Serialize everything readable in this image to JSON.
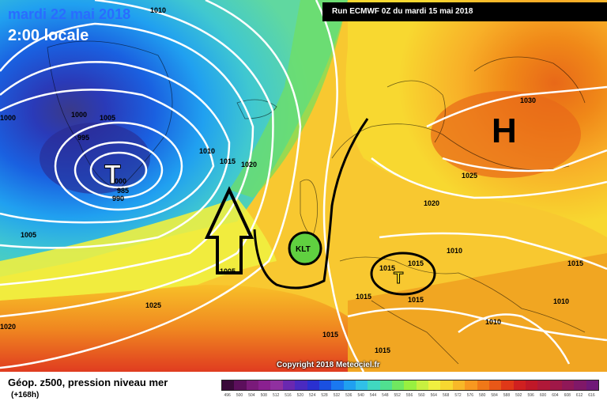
{
  "header": {
    "date": "mardi 22 mai 2018",
    "time": "2:00 locale",
    "run": "Run ECMWF 0Z du mardi 15 mai 2018"
  },
  "footer": {
    "title": "Géop. z500, pression niveau mer",
    "subtitle": "(+168h)",
    "copyright": "Copyright 2018 Meteociel.fr",
    "scale_values": [
      "496",
      "500",
      "504",
      "508",
      "512",
      "516",
      "520",
      "524",
      "528",
      "532",
      "536",
      "540",
      "544",
      "548",
      "552",
      "556",
      "560",
      "564",
      "568",
      "572",
      "576",
      "580",
      "584",
      "588",
      "592",
      "596",
      "600",
      "604",
      "608",
      "612",
      "616"
    ],
    "scale_colors": [
      "#3a0a3a",
      "#5c0f5c",
      "#7a1a7a",
      "#8a2090",
      "#9030a0",
      "#6a28b0",
      "#4a2ac0",
      "#2a30d0",
      "#1a50e0",
      "#1a78f0",
      "#20a0f0",
      "#30c0e8",
      "#40d8c0",
      "#50e090",
      "#70e860",
      "#98f040",
      "#c8f040",
      "#f0f040",
      "#f8d830",
      "#f8b828",
      "#f89820",
      "#f07818",
      "#e85818",
      "#e03818",
      "#d02020",
      "#c01828",
      "#b01838",
      "#a01848",
      "#901858",
      "#801868",
      "#701878"
    ]
  },
  "labels": {
    "highs": [
      "H"
    ],
    "lows": [
      "T",
      "T"
    ],
    "klt": "KLT",
    "isobars": [
      "1010",
      "1000",
      "1005",
      "995",
      "990",
      "985",
      "1010",
      "1015",
      "1020",
      "1005",
      "1005",
      "1025",
      "1020",
      "1000",
      "1030",
      "1025",
      "1020",
      "1015",
      "1015",
      "1015",
      "1015",
      "1015",
      "1015",
      "1010",
      "1010",
      "1015",
      "1010",
      "1000"
    ]
  }
}
